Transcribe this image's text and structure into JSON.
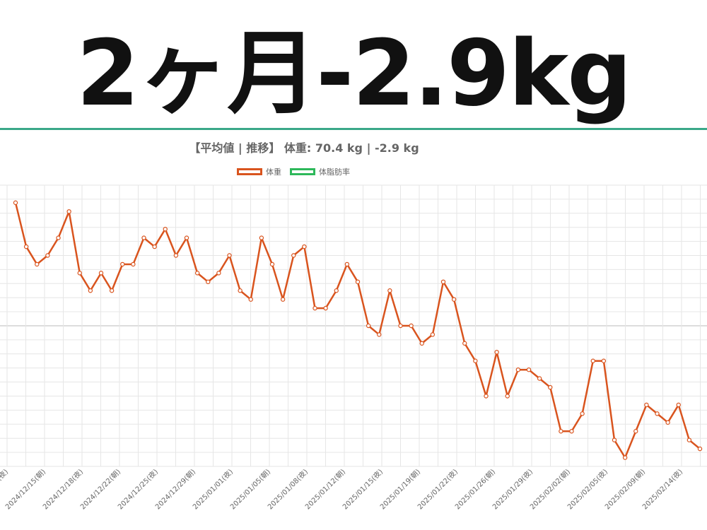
{
  "headline": "2ヶ月-2.9kg",
  "colors": {
    "rule": "#3aa888",
    "weight_series": "#d9541e",
    "fat_series": "#2db85a",
    "grid": "#dddddd"
  },
  "chart_data": {
    "type": "line",
    "title": "【平均値 | 推移】 体重: 70.4 kg | -2.9 kg",
    "legend": [
      {
        "name": "体重",
        "color": "#d9541e"
      },
      {
        "name": "体脂肪率",
        "color": "#2db85a"
      }
    ],
    "legend_position": "top-center",
    "grid": true,
    "xticks": [
      "(夜)",
      "2024/12/15(朝)",
      "2024/12/18(夜)",
      "2024/12/22(朝)",
      "2024/12/25(夜)",
      "2024/12/29(朝)",
      "2025/01/01(夜)",
      "2025/01/05(朝)",
      "2025/01/08(夜)",
      "2025/01/12(朝)",
      "2025/01/15(夜)",
      "2025/01/19(朝)",
      "2025/01/22(夜)",
      "2025/01/26(朝)",
      "2025/01/29(夜)",
      "2025/02/02(朝)",
      "2025/02/05(夜)",
      "2025/02/09(朝)",
      "2025/02/14(夜)"
    ],
    "series": [
      {
        "name": "体重",
        "values": [
          73.4,
          72.9,
          72.7,
          72.8,
          73.0,
          73.3,
          72.6,
          72.4,
          72.6,
          72.4,
          72.7,
          72.7,
          73.0,
          72.9,
          73.1,
          72.8,
          73.0,
          72.6,
          72.5,
          72.6,
          72.8,
          72.4,
          72.3,
          73.0,
          72.7,
          72.3,
          72.8,
          72.9,
          72.2,
          72.2,
          72.4,
          72.7,
          72.5,
          72.0,
          71.9,
          72.4,
          72.0,
          72.0,
          71.8,
          71.9,
          72.5,
          72.3,
          71.8,
          71.6,
          71.2,
          71.7,
          71.2,
          71.5,
          71.5,
          71.4,
          71.3,
          70.8,
          70.8,
          71.0,
          71.6,
          71.6,
          70.7,
          70.5,
          70.8,
          71.1,
          71.0,
          70.9,
          71.1,
          70.7,
          70.6
        ]
      }
    ]
  }
}
